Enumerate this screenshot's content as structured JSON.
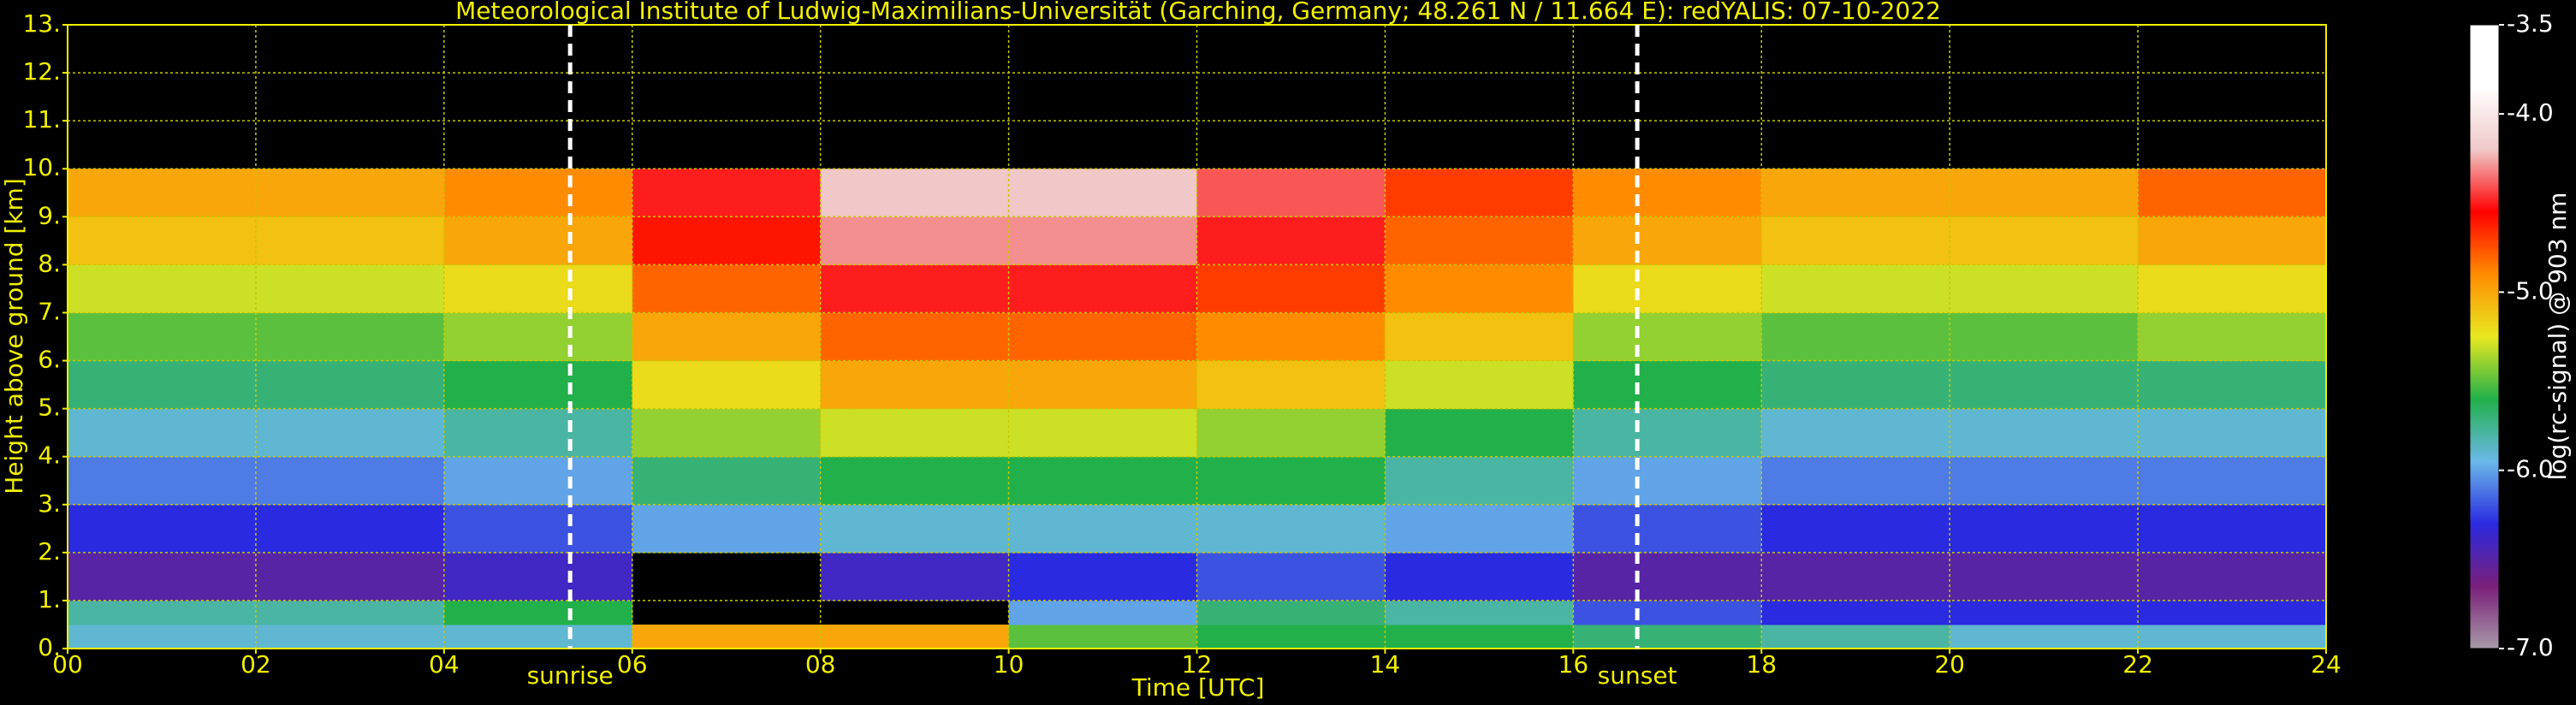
{
  "chart_data": {
    "type": "heatmap",
    "title": "Meteorological Institute of Ludwig-Maximilians-Universität (Garching, Germany; 48.261 N / 11.664 E):    redYALIS: 07-10-2022",
    "xlabel": "Time [UTC]",
    "ylabel": "Height above ground [km]",
    "colorbar_label": "log(rc-signal) @ 903 nm",
    "xlim": [
      0,
      24
    ],
    "xticks": [
      {
        "value": 0,
        "label": "00"
      },
      {
        "value": 2,
        "label": "02"
      },
      {
        "value": 4,
        "label": "04"
      },
      {
        "value": 6,
        "label": "06"
      },
      {
        "value": 8,
        "label": "08"
      },
      {
        "value": 10,
        "label": "10"
      },
      {
        "value": 12,
        "label": "12"
      },
      {
        "value": 14,
        "label": "14"
      },
      {
        "value": 16,
        "label": "16"
      },
      {
        "value": 18,
        "label": "18"
      },
      {
        "value": 20,
        "label": "20"
      },
      {
        "value": 22,
        "label": "22"
      },
      {
        "value": 24,
        "label": "24"
      }
    ],
    "ylim": [
      0,
      13
    ],
    "yticks": [
      {
        "value": 0,
        "label": "0."
      },
      {
        "value": 1,
        "label": "1."
      },
      {
        "value": 2,
        "label": "2."
      },
      {
        "value": 3,
        "label": "3."
      },
      {
        "value": 4,
        "label": "4."
      },
      {
        "value": 5,
        "label": "5."
      },
      {
        "value": 6,
        "label": "6."
      },
      {
        "value": 7,
        "label": "7."
      },
      {
        "value": 8,
        "label": "8."
      },
      {
        "value": 9,
        "label": "9."
      },
      {
        "value": 10,
        "label": "10."
      },
      {
        "value": 11,
        "label": "11."
      },
      {
        "value": 12,
        "label": "12."
      },
      {
        "value": 13,
        "label": "13."
      }
    ],
    "zlim": [
      -7,
      -3.5
    ],
    "zticks": [
      {
        "value": -7,
        "label": "-7.0"
      },
      {
        "value": -6,
        "label": "-6.0"
      },
      {
        "value": -5,
        "label": "-5.0"
      },
      {
        "value": -4,
        "label": "-4.0"
      },
      -3.5
    ],
    "colorscale": [
      "#a89aa8",
      "#7a1f7a",
      "#2a2ae0",
      "#6ab8e8",
      "#22b04a",
      "#e8e820",
      "#ff8c00",
      "#ff0000",
      "#f0c8c8",
      "#ffffff",
      "#ffffff"
    ],
    "grid": true,
    "grid_color": "#c8c800",
    "x_edges": [
      0,
      2,
      4,
      6,
      8,
      10,
      12,
      14,
      16,
      18,
      20,
      22,
      24
    ],
    "y_edges": [
      0,
      0.5,
      1,
      2,
      3,
      4,
      5,
      6,
      7,
      8,
      9,
      10
    ],
    "z": [
      [
        -5.9,
        -5.9,
        -5.9,
        -5.0,
        -5.0,
        -5.5,
        -5.6,
        -5.6,
        -5.7,
        -5.8,
        -5.9,
        -5.9
      ],
      [
        -5.8,
        -5.8,
        -5.6,
        null,
        null,
        -6.0,
        -5.7,
        -5.8,
        -6.2,
        -6.3,
        -6.3,
        -6.3
      ],
      [
        -6.5,
        -6.5,
        -6.4,
        null,
        -6.4,
        -6.3,
        -6.2,
        -6.3,
        -6.5,
        -6.5,
        -6.5,
        -6.5
      ],
      [
        -6.3,
        -6.3,
        -6.2,
        -6.0,
        -5.9,
        -5.9,
        -5.9,
        -6.0,
        -6.2,
        -6.3,
        -6.3,
        -6.3
      ],
      [
        -6.1,
        -6.1,
        -6.0,
        -5.7,
        -5.6,
        -5.6,
        -5.6,
        -5.8,
        -6.0,
        -6.1,
        -6.1,
        -6.1
      ],
      [
        -5.9,
        -5.9,
        -5.8,
        -5.4,
        -5.3,
        -5.3,
        -5.4,
        -5.6,
        -5.8,
        -5.9,
        -5.9,
        -5.9
      ],
      [
        -5.7,
        -5.7,
        -5.6,
        -5.2,
        -5.0,
        -5.0,
        -5.1,
        -5.3,
        -5.6,
        -5.7,
        -5.7,
        -5.7
      ],
      [
        -5.5,
        -5.5,
        -5.4,
        -5.0,
        -4.8,
        -4.8,
        -4.9,
        -5.1,
        -5.4,
        -5.5,
        -5.5,
        -5.4
      ],
      [
        -5.3,
        -5.3,
        -5.2,
        -4.8,
        -4.5,
        -4.5,
        -4.7,
        -4.9,
        -5.2,
        -5.3,
        -5.3,
        -5.2
      ],
      [
        -5.1,
        -5.1,
        -5.0,
        -4.6,
        -4.3,
        -4.3,
        -4.5,
        -4.8,
        -5.0,
        -5.1,
        -5.1,
        -5.0
      ],
      [
        -5.0,
        -5.0,
        -4.9,
        -4.5,
        -4.2,
        -4.2,
        -4.4,
        -4.7,
        -4.9,
        -5.0,
        -5.0,
        -4.8
      ]
    ],
    "annotations": [
      {
        "x": 5.34,
        "text": "sunrise"
      },
      {
        "x": 16.68,
        "text": "sunset"
      }
    ]
  }
}
